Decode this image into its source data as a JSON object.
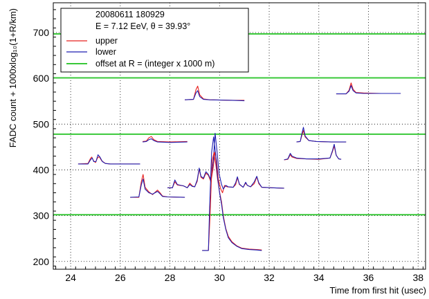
{
  "chart_data": {
    "type": "line",
    "xlabel": "Time from first hit (usec)",
    "ylabel": "FADC count + 1000xlog₁₀(1+R/km)",
    "xlim": [
      23.3,
      38.3
    ],
    "ylim": [
      183,
      765
    ],
    "x_ticks": [
      24,
      26,
      28,
      30,
      32,
      34,
      36,
      38
    ],
    "y_ticks": [
      200,
      300,
      400,
      500,
      600,
      700
    ],
    "grid": true,
    "legend_position": "top-left",
    "legend": {
      "event_id": "20080611  180929",
      "event_params": "E =  7.12 EeV, θ = 39.93°",
      "entries": [
        {
          "label": "upper",
          "color": "#e8201e",
          "kind": "line"
        },
        {
          "label": "lower",
          "color": "#1c1cb0",
          "kind": "line"
        },
        {
          "label": "offset at R = (integer x 1000 m)",
          "color": "#38c838",
          "kind": "hline"
        }
      ]
    },
    "offset_lines": {
      "color": "#38c838",
      "y": [
        302,
        478,
        601,
        697
      ]
    },
    "traces": [
      {
        "upper": [
          [
            24.3,
            413
          ],
          [
            24.7,
            414
          ],
          [
            24.8,
            425
          ],
          [
            24.85,
            428
          ],
          [
            24.92,
            420
          ],
          [
            25.0,
            416
          ],
          [
            25.08,
            426
          ],
          [
            25.15,
            429
          ],
          [
            25.25,
            420
          ],
          [
            25.4,
            414
          ],
          [
            25.6,
            413
          ],
          [
            26.2,
            413
          ],
          [
            26.8,
            413
          ]
        ],
        "lower": [
          [
            24.3,
            413
          ],
          [
            24.7,
            413
          ],
          [
            24.8,
            422
          ],
          [
            24.87,
            426
          ],
          [
            24.93,
            418
          ],
          [
            25.02,
            418
          ],
          [
            25.1,
            433
          ],
          [
            25.18,
            428
          ],
          [
            25.28,
            418
          ],
          [
            25.4,
            414
          ],
          [
            25.6,
            413
          ],
          [
            26.2,
            413
          ],
          [
            26.8,
            413
          ]
        ]
      },
      {
        "upper": [
          [
            26.4,
            340
          ],
          [
            26.75,
            340
          ],
          [
            26.85,
            375
          ],
          [
            26.92,
            390
          ],
          [
            27.0,
            362
          ],
          [
            27.15,
            352
          ],
          [
            27.3,
            346
          ],
          [
            27.5,
            356
          ],
          [
            27.6,
            350
          ],
          [
            27.7,
            343
          ],
          [
            27.9,
            341
          ],
          [
            28.6,
            340
          ]
        ],
        "lower": [
          [
            26.4,
            340
          ],
          [
            26.75,
            341
          ],
          [
            26.85,
            368
          ],
          [
            26.92,
            380
          ],
          [
            27.0,
            358
          ],
          [
            27.15,
            350
          ],
          [
            27.3,
            347
          ],
          [
            27.5,
            353
          ],
          [
            27.6,
            348
          ],
          [
            27.7,
            342
          ],
          [
            27.9,
            341
          ],
          [
            28.6,
            340
          ]
        ]
      },
      {
        "upper": [
          [
            26.9,
            462
          ],
          [
            27.05,
            463
          ],
          [
            27.15,
            470
          ],
          [
            27.25,
            473
          ],
          [
            27.35,
            466
          ],
          [
            27.5,
            462
          ],
          [
            28.0,
            461
          ],
          [
            28.7,
            462
          ]
        ],
        "lower": [
          [
            26.9,
            461
          ],
          [
            27.05,
            462
          ],
          [
            27.15,
            466
          ],
          [
            27.25,
            468
          ],
          [
            27.35,
            464
          ],
          [
            27.5,
            461
          ],
          [
            28.0,
            460
          ],
          [
            28.7,
            461
          ]
        ]
      },
      {
        "upper": [
          [
            28.6,
            553
          ],
          [
            28.95,
            554
          ],
          [
            29.05,
            575
          ],
          [
            29.12,
            583
          ],
          [
            29.2,
            564
          ],
          [
            29.35,
            555
          ],
          [
            29.6,
            553
          ],
          [
            30.5,
            552
          ],
          [
            31.0,
            552
          ]
        ],
        "lower": [
          [
            28.6,
            553
          ],
          [
            28.95,
            554
          ],
          [
            29.05,
            568
          ],
          [
            29.12,
            573
          ],
          [
            29.2,
            560
          ],
          [
            29.35,
            554
          ],
          [
            29.6,
            553
          ],
          [
            30.5,
            552
          ],
          [
            31.0,
            551
          ]
        ]
      },
      {
        "upper": [
          [
            27.9,
            361
          ],
          [
            28.1,
            361
          ],
          [
            28.2,
            374
          ],
          [
            28.3,
            367
          ],
          [
            28.55,
            365
          ],
          [
            28.7,
            361
          ],
          [
            28.8,
            371
          ],
          [
            28.9,
            365
          ],
          [
            29.0,
            363
          ],
          [
            29.1,
            375
          ],
          [
            29.18,
            402
          ],
          [
            29.25,
            384
          ],
          [
            29.35,
            380
          ],
          [
            29.45,
            393
          ],
          [
            29.55,
            388
          ],
          [
            29.65,
            374
          ],
          [
            29.75,
            407
          ],
          [
            29.82,
            440
          ],
          [
            29.88,
            420
          ],
          [
            29.95,
            380
          ],
          [
            30.05,
            358
          ],
          [
            30.12,
            350
          ],
          [
            30.2,
            366
          ],
          [
            30.3,
            363
          ],
          [
            30.55,
            362
          ],
          [
            30.65,
            368
          ],
          [
            30.72,
            383
          ],
          [
            30.8,
            368
          ],
          [
            30.95,
            362
          ],
          [
            31.05,
            371
          ],
          [
            31.12,
            366
          ],
          [
            31.25,
            363
          ],
          [
            31.4,
            370
          ],
          [
            31.5,
            385
          ],
          [
            31.58,
            370
          ],
          [
            31.7,
            362
          ],
          [
            32.1,
            361
          ],
          [
            32.6,
            360
          ]
        ],
        "lower": [
          [
            27.9,
            361
          ],
          [
            28.1,
            361
          ],
          [
            28.2,
            378
          ],
          [
            28.3,
            368
          ],
          [
            28.55,
            365
          ],
          [
            28.7,
            361
          ],
          [
            28.8,
            368
          ],
          [
            28.9,
            364
          ],
          [
            29.0,
            363
          ],
          [
            29.1,
            378
          ],
          [
            29.18,
            404
          ],
          [
            29.25,
            386
          ],
          [
            29.35,
            382
          ],
          [
            29.45,
            396
          ],
          [
            29.55,
            390
          ],
          [
            29.65,
            378
          ],
          [
            29.75,
            420
          ],
          [
            29.82,
            480
          ],
          [
            29.9,
            440
          ],
          [
            29.98,
            392
          ],
          [
            30.08,
            368
          ],
          [
            30.15,
            358
          ],
          [
            30.25,
            366
          ],
          [
            30.35,
            363
          ],
          [
            30.55,
            362
          ],
          [
            30.65,
            372
          ],
          [
            30.72,
            385
          ],
          [
            30.8,
            369
          ],
          [
            30.95,
            362
          ],
          [
            31.05,
            373
          ],
          [
            31.12,
            366
          ],
          [
            31.25,
            363
          ],
          [
            31.4,
            374
          ],
          [
            31.5,
            386
          ],
          [
            31.58,
            372
          ],
          [
            31.7,
            362
          ],
          [
            32.1,
            361
          ],
          [
            32.6,
            360
          ]
        ]
      },
      {
        "upper": [
          [
            29.3,
            224
          ],
          [
            29.55,
            224
          ],
          [
            29.62,
            305
          ],
          [
            29.7,
            420
          ],
          [
            29.78,
            438
          ],
          [
            29.85,
            412
          ],
          [
            29.92,
            380
          ],
          [
            30.0,
            352
          ],
          [
            30.08,
            330
          ],
          [
            30.15,
            300
          ],
          [
            30.25,
            272
          ],
          [
            30.35,
            255
          ],
          [
            30.5,
            243
          ],
          [
            30.7,
            234
          ],
          [
            30.9,
            229
          ],
          [
            31.2,
            227
          ],
          [
            31.5,
            226
          ],
          [
            31.7,
            225
          ]
        ],
        "lower": [
          [
            29.3,
            224
          ],
          [
            29.55,
            224
          ],
          [
            29.6,
            320
          ],
          [
            29.68,
            438
          ],
          [
            29.76,
            472
          ],
          [
            29.84,
            435
          ],
          [
            29.92,
            385
          ],
          [
            30.0,
            350
          ],
          [
            30.08,
            325
          ],
          [
            30.15,
            296
          ],
          [
            30.25,
            270
          ],
          [
            30.35,
            252
          ],
          [
            30.5,
            241
          ],
          [
            30.7,
            233
          ],
          [
            30.9,
            228
          ],
          [
            31.2,
            226
          ],
          [
            31.5,
            225
          ],
          [
            31.7,
            224
          ]
        ]
      },
      {
        "upper": [
          [
            32.6,
            422
          ],
          [
            32.75,
            423
          ],
          [
            32.85,
            433
          ],
          [
            32.92,
            428
          ],
          [
            33.1,
            425
          ],
          [
            33.5,
            424
          ],
          [
            34.0,
            423
          ],
          [
            34.45,
            426
          ],
          [
            34.55,
            440
          ],
          [
            34.62,
            452
          ],
          [
            34.7,
            432
          ],
          [
            34.8,
            424
          ],
          [
            34.9,
            423
          ]
        ],
        "lower": [
          [
            32.6,
            422
          ],
          [
            32.75,
            424
          ],
          [
            32.85,
            436
          ],
          [
            32.92,
            430
          ],
          [
            33.1,
            426
          ],
          [
            33.5,
            424
          ],
          [
            34.0,
            424
          ],
          [
            34.45,
            426
          ],
          [
            34.55,
            442
          ],
          [
            34.62,
            456
          ],
          [
            34.7,
            432
          ],
          [
            34.8,
            424
          ],
          [
            34.9,
            423
          ]
        ]
      },
      {
        "upper": [
          [
            33.1,
            461
          ],
          [
            33.25,
            462
          ],
          [
            33.32,
            476
          ],
          [
            33.38,
            486
          ],
          [
            33.45,
            472
          ],
          [
            33.6,
            464
          ],
          [
            33.9,
            462
          ],
          [
            34.5,
            461
          ],
          [
            35.1,
            461
          ]
        ],
        "lower": [
          [
            33.1,
            461
          ],
          [
            33.25,
            462
          ],
          [
            33.32,
            480
          ],
          [
            33.38,
            493
          ],
          [
            33.45,
            474
          ],
          [
            33.6,
            464
          ],
          [
            33.9,
            462
          ],
          [
            34.5,
            461
          ],
          [
            35.1,
            461
          ]
        ]
      },
      {
        "upper": [
          [
            34.7,
            566
          ],
          [
            35.1,
            566
          ],
          [
            35.22,
            574
          ],
          [
            35.3,
            590
          ],
          [
            35.38,
            576
          ],
          [
            35.5,
            569
          ],
          [
            35.8,
            568
          ],
          [
            36.5,
            567
          ],
          [
            37.3,
            567
          ]
        ],
        "lower": [
          [
            34.7,
            566
          ],
          [
            35.1,
            566
          ],
          [
            35.22,
            572
          ],
          [
            35.3,
            584
          ],
          [
            35.38,
            573
          ],
          [
            35.5,
            568
          ],
          [
            35.8,
            567
          ],
          [
            36.5,
            567
          ],
          [
            37.3,
            567
          ]
        ]
      }
    ]
  }
}
